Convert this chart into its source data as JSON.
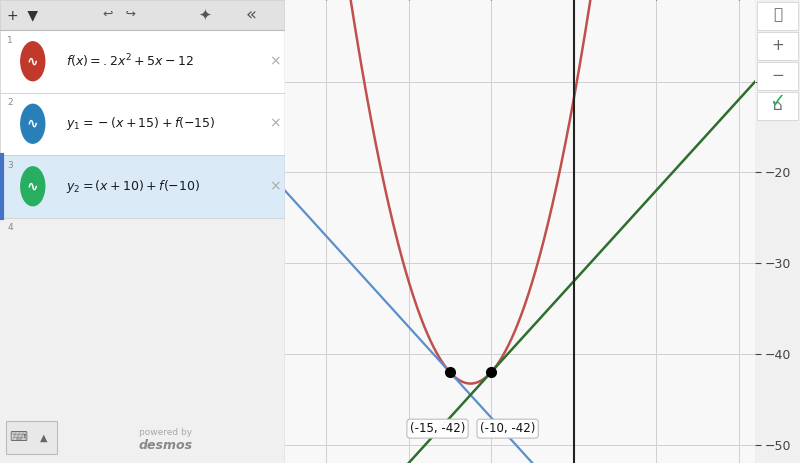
{
  "xlim": [
    -35,
    22
  ],
  "ylim": [
    -52,
    -1
  ],
  "x_ticks": [
    -30,
    -20,
    -10,
    0,
    10,
    20
  ],
  "y_ticks": [
    -10,
    -20,
    -30,
    -40,
    -50
  ],
  "parabola_color": "#c0504d",
  "line1_color": "#5b8fcb",
  "line2_color": "#2d6e2d",
  "point1": [
    -15,
    -42
  ],
  "point2": [
    -10,
    -42
  ],
  "label1": "(-15, -42)",
  "label2": "(-10, -42)",
  "plot_bg": "#f8f8f8",
  "grid_color": "#d0d0d0",
  "panel_bg_white": "#ffffff",
  "panel_bg_blue": "#d8eaf7",
  "toolbar_bg": "#e8e8e8",
  "icon1_color": "#c0392b",
  "icon2_color": "#2980b9",
  "icon3_color": "#27ae60",
  "right_panel_bg": "#f0f0f0",
  "formula1": "f(x) = .2x^{2} + 5x - 12",
  "formula2": "y_1 = -(x+15)+f(-15)",
  "formula3": "y_2 = (x+10)+f(-10)"
}
